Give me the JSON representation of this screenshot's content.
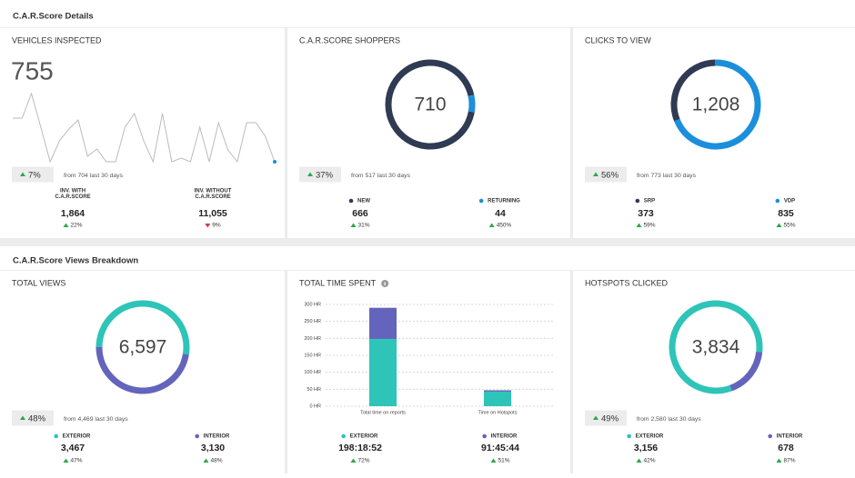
{
  "sections": [
    {
      "title": "C.A.R.Score Details",
      "panels": [
        {
          "title": "VEHICLES INSPECTED",
          "value": "755",
          "sparkline": [
            50,
            50,
            77,
            40,
            2,
            25,
            38,
            48,
            8,
            16,
            2,
            2,
            40,
            55,
            25,
            2,
            55,
            2,
            6,
            2,
            40,
            2,
            45,
            15,
            2,
            45,
            45,
            30,
            2
          ],
          "line_color": "#bbbbbb",
          "end_color": "#1b8fdc",
          "change": "7%",
          "direction": "up",
          "comparison": "from 704 last 30 days",
          "metrics": [
            {
              "label": [
                "INV. WITH",
                "C.A.R.SCORE"
              ],
              "value": 1864,
              "value_label": "1,864",
              "change": "22%",
              "direction": "up"
            },
            {
              "label": [
                "INV. WITHOUT",
                "C.A.R.SCORE"
              ],
              "value": 11055,
              "value_label": "11,055",
              "change": "9%",
              "direction": "down"
            }
          ]
        },
        {
          "title": "C.A.R.SCORE SHOPPERS",
          "total": "710",
          "change": "37%",
          "direction": "up",
          "comparison": "from 517 last 30 days",
          "metrics": [
            {
              "label": "NEW",
              "color": "#2f3b53",
              "value": 666,
              "change": "31%",
              "direction": "up"
            },
            {
              "label": "RETURNING",
              "color": "#1b8fdc",
              "value": 44,
              "change": "450%",
              "direction": "up"
            }
          ]
        },
        {
          "title": "CLICKS TO VIEW",
          "total": "1,208",
          "change": "56%",
          "direction": "up",
          "comparison": "from 773 last 30 days",
          "metrics": [
            {
              "label": "SRP",
              "color": "#2f3b53",
              "value": 373,
              "change": "59%",
              "direction": "up"
            },
            {
              "label": "VDP",
              "color": "#1b8fdc",
              "value": 835,
              "change": "55%",
              "direction": "up"
            }
          ]
        }
      ]
    },
    {
      "title": "C.A.R.Score Views Breakdown",
      "panels": [
        {
          "title": "TOTAL VIEWS",
          "total": "6,597",
          "change": "48%",
          "direction": "up",
          "comparison": "from 4,469 last 30 days",
          "metrics": [
            {
              "label": "EXTERIOR",
              "color": "#2ec4b8",
              "value": 3467,
              "value_label": "3,467",
              "change": "47%",
              "direction": "up"
            },
            {
              "label": "INTERIOR",
              "color": "#6464bc",
              "value": 3130,
              "value_label": "3,130",
              "change": "48%",
              "direction": "up"
            }
          ]
        },
        {
          "title": "TOTAL TIME SPENT",
          "chart_data": {
            "type": "bar",
            "stacked": true,
            "categories": [
              "Total time on reports",
              "Time on Hotspots"
            ],
            "series": [
              {
                "name": "EXTERIOR",
                "color": "#2ec4b8",
                "values": [
                  198.3,
                  43
                ],
                "total": "198:18:52",
                "change": "72%",
                "direction": "up"
              },
              {
                "name": "INTERIOR",
                "color": "#6464bc",
                "values": [
                  91.8,
                  4
                ],
                "total": "91:45:44",
                "change": "51%",
                "direction": "up"
              }
            ],
            "ylim": [
              0,
              300
            ],
            "yticks": [
              {
                "value": 0,
                "label": "0 HR"
              },
              {
                "value": 50,
                "label": "50 HR"
              },
              {
                "value": 100,
                "label": "100 HR"
              },
              {
                "value": 150,
                "label": "150 HR"
              },
              {
                "value": 200,
                "label": "200 HR"
              },
              {
                "value": 250,
                "label": "250 HR"
              },
              {
                "value": 300,
                "label": "300 HR"
              }
            ],
            "grid": true
          }
        },
        {
          "title": "HOTSPOTS CLICKED",
          "total": "3,834",
          "change": "49%",
          "direction": "up",
          "comparison": "from 2,580 last 30 days",
          "metrics": [
            {
              "label": "EXTERIOR",
              "color": "#2ec4b8",
              "value": 3156,
              "value_label": "3,156",
              "change": "42%",
              "direction": "up"
            },
            {
              "label": "INTERIOR",
              "color": "#6464bc",
              "value": 678,
              "change": "87%",
              "direction": "up"
            }
          ]
        }
      ]
    }
  ]
}
